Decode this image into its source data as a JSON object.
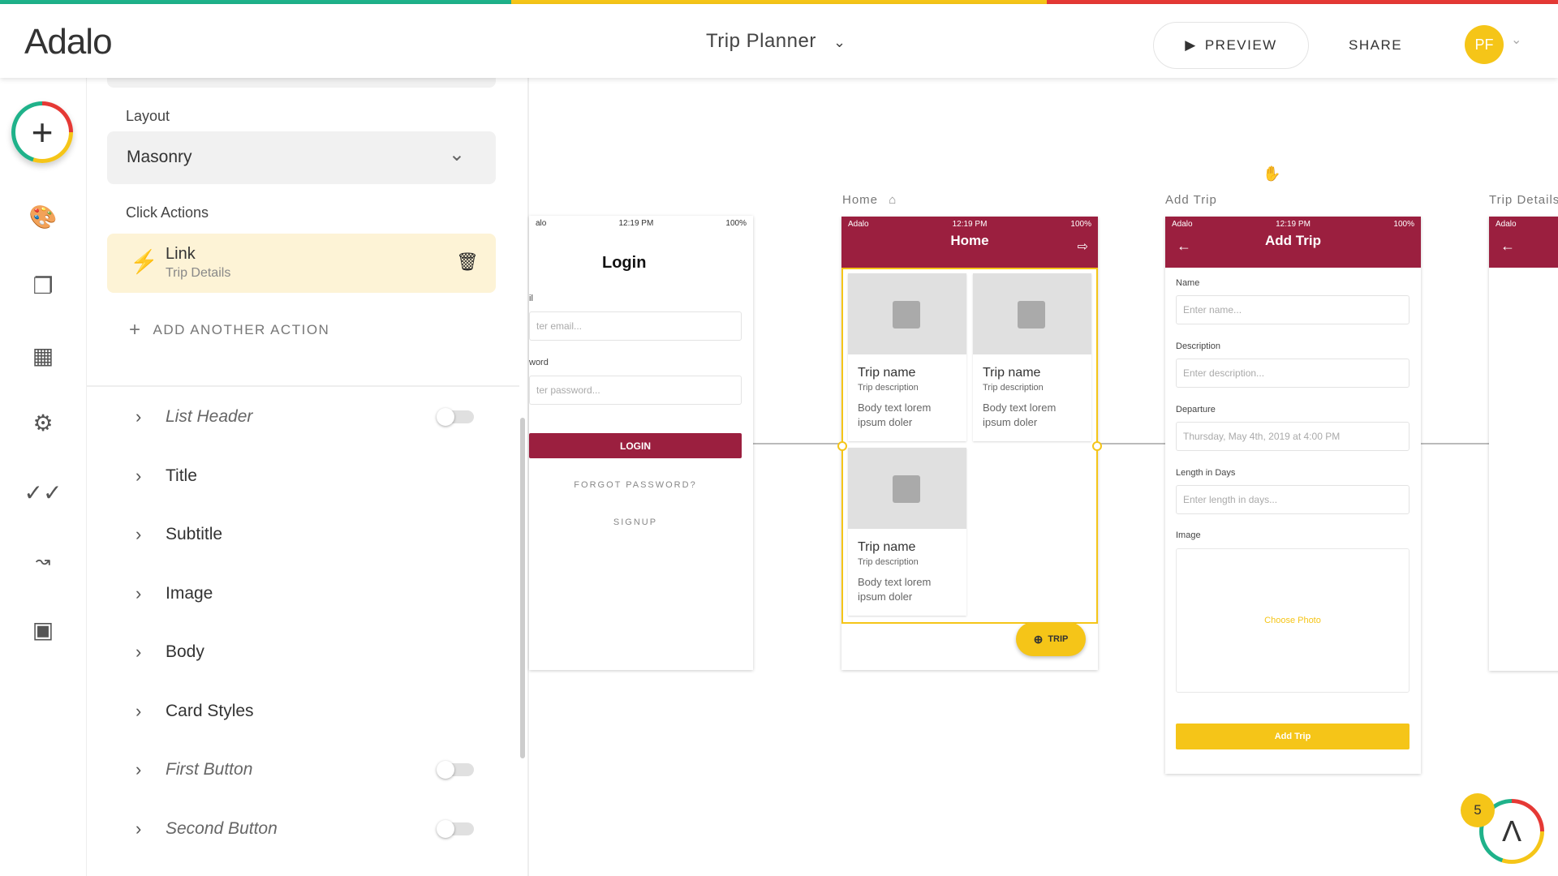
{
  "colors": {
    "green": "#1fb28a",
    "yellow": "#f5c518",
    "red": "#e53935",
    "maroon": "#9b1f3f"
  },
  "header": {
    "logo": "Adalo",
    "app_title": "Trip Planner",
    "preview": "PREVIEW",
    "share": "SHARE",
    "avatar": "PF"
  },
  "rail": {
    "icons": [
      "add-icon",
      "palette-icon",
      "screens-icon",
      "database-icon",
      "settings-icon",
      "publish-check-icon",
      "analytics-icon",
      "app-access-icon"
    ]
  },
  "panel": {
    "layout_label": "Layout",
    "layout_value": "Masonry",
    "click_actions_label": "Click Actions",
    "action": {
      "title": "Link",
      "subtitle": "Trip Details"
    },
    "add_action": "ADD ANOTHER ACTION",
    "sections": [
      {
        "label": "List Header",
        "italic": true,
        "toggle": false
      },
      {
        "label": "Title"
      },
      {
        "label": "Subtitle"
      },
      {
        "label": "Image"
      },
      {
        "label": "Body"
      },
      {
        "label": "Card Styles"
      },
      {
        "label": "First Button",
        "italic": true,
        "toggle": false
      },
      {
        "label": "Second Button",
        "italic": true,
        "toggle": false
      }
    ]
  },
  "canvas": {
    "status": {
      "carrier": "Adalo",
      "time": "12:19 PM",
      "battery": "100%"
    },
    "login": {
      "title": "Login",
      "email_label": "il",
      "email_ph": "ter email...",
      "pw_label": "word",
      "pw_ph": "ter password...",
      "login": "LOGIN",
      "forgot": "FORGOT PASSWORD?",
      "signup": "SIGNUP",
      "carrier": "alo"
    },
    "home": {
      "label": "Home",
      "title": "Home",
      "cards": [
        {
          "name": "Trip name",
          "desc": "Trip description",
          "body": "Body text lorem ipsum doler"
        },
        {
          "name": "Trip name",
          "desc": "Trip description",
          "body": "Body text lorem ipsum doler"
        },
        {
          "name": "Trip name",
          "desc": "Trip description",
          "body": "Body text lorem ipsum doler"
        }
      ],
      "fab": "TRIP"
    },
    "add_trip": {
      "label": "Add Trip",
      "title": "Add Trip",
      "name_label": "Name",
      "name_ph": "Enter name...",
      "desc_label": "Description",
      "desc_ph": "Enter description...",
      "dep_label": "Departure",
      "dep_value": "Thursday, May 4th, 2019 at 4:00 PM",
      "len_label": "Length in Days",
      "len_ph": "Enter length in days...",
      "image_label": "Image",
      "choose_photo": "Choose Photo",
      "submit": "Add Trip"
    },
    "trip_details": {
      "label": "Trip Details",
      "carrier": "Adalo"
    }
  },
  "notification_count": "5"
}
